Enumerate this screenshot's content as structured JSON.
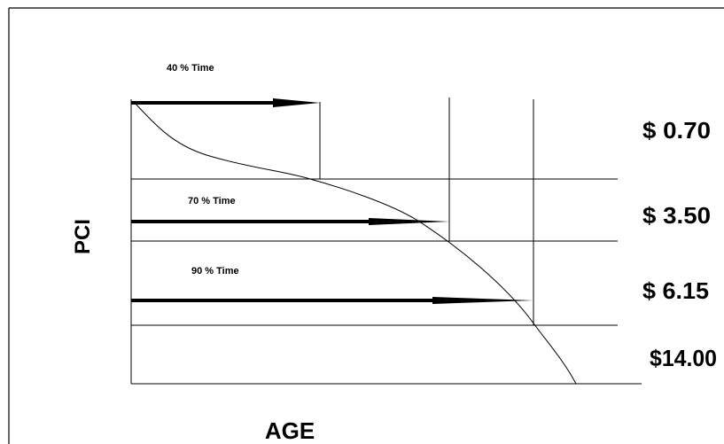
{
  "diagram": {
    "y_axis_label": "PCI",
    "x_axis_label": "AGE",
    "arrow_labels": {
      "forty": "40 % Time",
      "seventy": "70 % Time",
      "ninety": "90 % Time"
    },
    "costs": {
      "c1": "$ 0.70",
      "c2": "$ 3.50",
      "c3": "$ 6.15",
      "c4": "$14.00"
    },
    "colors": {
      "ink": "#000000",
      "background": "#ffffff"
    }
  }
}
